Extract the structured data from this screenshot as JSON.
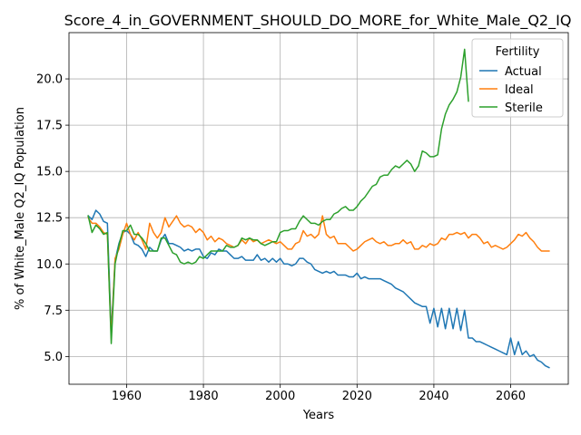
{
  "chart_data": {
    "type": "line",
    "title": "Score_4_in_GOVERNMENT_SHOULD_DO_MORE_for_White_Male_Q2_IQ",
    "xlabel": "Years",
    "ylabel": "% of White_Male Q2_IQ Population",
    "xlim": [
      1945,
      2075
    ],
    "ylim": [
      3.5,
      22.5
    ],
    "xticks": [
      1960,
      1980,
      2000,
      2020,
      2040,
      2060
    ],
    "yticks": [
      5.0,
      7.5,
      10.0,
      12.5,
      15.0,
      17.5,
      20.0
    ],
    "ytick_labels": [
      "5.0",
      "7.5",
      "10.0",
      "12.5",
      "15.0",
      "17.5",
      "20.0"
    ],
    "grid": true,
    "legend": {
      "title": "Fertility",
      "placement": "top-right"
    },
    "series": [
      {
        "name": "Actual",
        "color": "#1f77b4",
        "x": [
          1950,
          1951,
          1952,
          1953,
          1954,
          1955,
          1956,
          1957,
          1958,
          1959,
          1960,
          1961,
          1962,
          1963,
          1964,
          1965,
          1966,
          1967,
          1968,
          1969,
          1970,
          1971,
          1972,
          1973,
          1974,
          1975,
          1976,
          1977,
          1978,
          1979,
          1980,
          1981,
          1982,
          1983,
          1984,
          1985,
          1986,
          1987,
          1988,
          1989,
          1990,
          1991,
          1992,
          1993,
          1994,
          1995,
          1996,
          1997,
          1998,
          1999,
          2000,
          2001,
          2002,
          2003,
          2004,
          2005,
          2006,
          2007,
          2008,
          2009,
          2010,
          2011,
          2012,
          2013,
          2014,
          2015,
          2016,
          2017,
          2018,
          2019,
          2020,
          2021,
          2022,
          2023,
          2024,
          2025,
          2026,
          2027,
          2028,
          2029,
          2030,
          2031,
          2032,
          2033,
          2034,
          2035,
          2036,
          2037,
          2038,
          2039,
          2040,
          2041,
          2042,
          2043,
          2044,
          2045,
          2046,
          2047,
          2048,
          2049,
          2050,
          2051,
          2052,
          2053,
          2054,
          2055,
          2056,
          2057,
          2058,
          2059,
          2060,
          2061,
          2062,
          2063,
          2064,
          2065,
          2066,
          2067,
          2068,
          2069,
          2070
        ],
        "values": [
          12.6,
          12.4,
          12.9,
          12.7,
          12.3,
          12.2,
          6.3,
          10.2,
          11.1,
          11.7,
          11.8,
          11.6,
          11.1,
          11.0,
          10.8,
          10.4,
          10.9,
          10.7,
          10.7,
          11.3,
          11.6,
          11.1,
          11.1,
          11.0,
          10.9,
          10.7,
          10.8,
          10.7,
          10.8,
          10.8,
          10.4,
          10.3,
          10.6,
          10.5,
          10.8,
          10.7,
          10.7,
          10.5,
          10.3,
          10.3,
          10.4,
          10.2,
          10.2,
          10.2,
          10.5,
          10.2,
          10.3,
          10.1,
          10.3,
          10.1,
          10.3,
          10.0,
          10.0,
          9.9,
          10.0,
          10.3,
          10.3,
          10.1,
          10.0,
          9.7,
          9.6,
          9.5,
          9.6,
          9.5,
          9.6,
          9.4,
          9.4,
          9.4,
          9.3,
          9.3,
          9.5,
          9.2,
          9.3,
          9.2,
          9.2,
          9.2,
          9.2,
          9.1,
          9.0,
          8.9,
          8.7,
          8.6,
          8.5,
          8.3,
          8.1,
          7.9,
          7.8,
          7.7,
          7.7,
          6.8,
          7.6,
          6.6,
          7.6,
          6.5,
          7.6,
          6.5,
          7.6,
          6.4,
          7.5,
          6.0,
          6.0,
          5.8,
          5.8,
          5.7,
          5.6,
          5.5,
          5.4,
          5.3,
          5.2,
          5.1,
          6.0,
          5.1,
          5.8,
          5.1,
          5.3,
          5.0,
          5.1,
          4.8,
          4.7,
          4.5,
          4.4
        ]
      },
      {
        "name": "Ideal",
        "color": "#ff7f0e",
        "x": [
          1950,
          1951,
          1952,
          1953,
          1954,
          1955,
          1956,
          1957,
          1958,
          1959,
          1960,
          1961,
          1962,
          1963,
          1964,
          1965,
          1966,
          1967,
          1968,
          1969,
          1970,
          1971,
          1972,
          1973,
          1974,
          1975,
          1976,
          1977,
          1978,
          1979,
          1980,
          1981,
          1982,
          1983,
          1984,
          1985,
          1986,
          1987,
          1988,
          1989,
          1990,
          1991,
          1992,
          1993,
          1994,
          1995,
          1996,
          1997,
          1998,
          1999,
          2000,
          2001,
          2002,
          2003,
          2004,
          2005,
          2006,
          2007,
          2008,
          2009,
          2010,
          2011,
          2012,
          2013,
          2014,
          2015,
          2016,
          2017,
          2018,
          2019,
          2020,
          2021,
          2022,
          2023,
          2024,
          2025,
          2026,
          2027,
          2028,
          2029,
          2030,
          2031,
          2032,
          2033,
          2034,
          2035,
          2036,
          2037,
          2038,
          2039,
          2040,
          2041,
          2042,
          2043,
          2044,
          2045,
          2046,
          2047,
          2048,
          2049,
          2050,
          2051,
          2052,
          2053,
          2054,
          2055,
          2056,
          2057,
          2058,
          2059,
          2060,
          2061,
          2062,
          2063,
          2064,
          2065,
          2066,
          2067,
          2068,
          2069,
          2070
        ],
        "values": [
          12.5,
          12.2,
          12.2,
          12.0,
          11.7,
          11.6,
          6.0,
          10.3,
          10.8,
          11.6,
          12.2,
          11.6,
          11.3,
          11.7,
          11.3,
          10.8,
          12.2,
          11.7,
          11.4,
          11.7,
          12.5,
          12.0,
          12.3,
          12.6,
          12.2,
          12.0,
          12.1,
          12.0,
          11.7,
          11.9,
          11.7,
          11.3,
          11.5,
          11.2,
          11.4,
          11.3,
          11.1,
          11.0,
          10.9,
          11.0,
          11.3,
          11.1,
          11.4,
          11.2,
          11.3,
          11.1,
          11.2,
          11.3,
          11.2,
          11.1,
          11.2,
          11.0,
          10.8,
          10.8,
          11.1,
          11.2,
          11.8,
          11.5,
          11.6,
          11.4,
          11.6,
          12.6,
          11.6,
          11.4,
          11.5,
          11.1,
          11.1,
          11.1,
          10.9,
          10.7,
          10.8,
          11.0,
          11.2,
          11.3,
          11.4,
          11.2,
          11.1,
          11.2,
          11.0,
          11.0,
          11.1,
          11.1,
          11.3,
          11.1,
          11.2,
          10.8,
          10.8,
          11.0,
          10.9,
          11.1,
          11.0,
          11.1,
          11.4,
          11.3,
          11.6,
          11.6,
          11.7,
          11.6,
          11.7,
          11.4,
          11.6,
          11.6,
          11.4,
          11.1,
          11.2,
          10.9,
          11.0,
          10.9,
          10.8,
          10.9,
          11.1,
          11.3,
          11.6,
          11.5,
          11.7,
          11.4,
          11.2,
          10.9,
          10.7,
          10.7,
          10.7
        ]
      },
      {
        "name": "Sterile",
        "color": "#2ca02c",
        "x": [
          1950,
          1951,
          1952,
          1953,
          1954,
          1955,
          1956,
          1957,
          1958,
          1959,
          1960,
          1961,
          1962,
          1963,
          1964,
          1965,
          1966,
          1967,
          1968,
          1969,
          1970,
          1971,
          1972,
          1973,
          1974,
          1975,
          1976,
          1977,
          1978,
          1979,
          1980,
          1981,
          1982,
          1983,
          1984,
          1985,
          1986,
          1987,
          1988,
          1989,
          1990,
          1991,
          1992,
          1993,
          1994,
          1995,
          1996,
          1997,
          1998,
          1999,
          2000,
          2001,
          2002,
          2003,
          2004,
          2005,
          2006,
          2007,
          2008,
          2009,
          2010,
          2011,
          2012,
          2013,
          2014,
          2015,
          2016,
          2017,
          2018,
          2019,
          2020,
          2021,
          2022,
          2023,
          2024,
          2025,
          2026,
          2027,
          2028,
          2029,
          2030,
          2031,
          2032,
          2033,
          2034,
          2035,
          2036,
          2037,
          2038,
          2039,
          2040,
          2041,
          2042,
          2043,
          2044,
          2045,
          2046,
          2047,
          2048,
          2049
        ],
        "values": [
          12.6,
          11.7,
          12.1,
          11.9,
          11.6,
          11.7,
          5.7,
          10.0,
          11.0,
          11.8,
          11.8,
          12.1,
          11.6,
          11.6,
          11.4,
          11.1,
          10.7,
          10.7,
          10.7,
          11.4,
          11.4,
          11.0,
          10.6,
          10.5,
          10.1,
          10.0,
          10.1,
          10.0,
          10.1,
          10.4,
          10.3,
          10.5,
          10.7,
          10.7,
          10.7,
          10.7,
          11.0,
          10.9,
          10.9,
          11.0,
          11.4,
          11.3,
          11.4,
          11.3,
          11.3,
          11.1,
          11.0,
          11.1,
          11.2,
          11.2,
          11.7,
          11.8,
          11.8,
          11.9,
          11.9,
          12.3,
          12.6,
          12.4,
          12.2,
          12.2,
          12.1,
          12.3,
          12.4,
          12.4,
          12.7,
          12.8,
          13.0,
          13.1,
          12.9,
          12.9,
          13.1,
          13.4,
          13.6,
          13.9,
          14.2,
          14.3,
          14.7,
          14.8,
          14.8,
          15.1,
          15.3,
          15.2,
          15.4,
          15.6,
          15.4,
          15.0,
          15.3,
          16.1,
          16.0,
          15.8,
          15.8,
          15.9,
          17.3,
          18.1,
          18.6,
          18.9,
          19.3,
          20.1,
          21.6,
          18.8
        ]
      }
    ]
  }
}
